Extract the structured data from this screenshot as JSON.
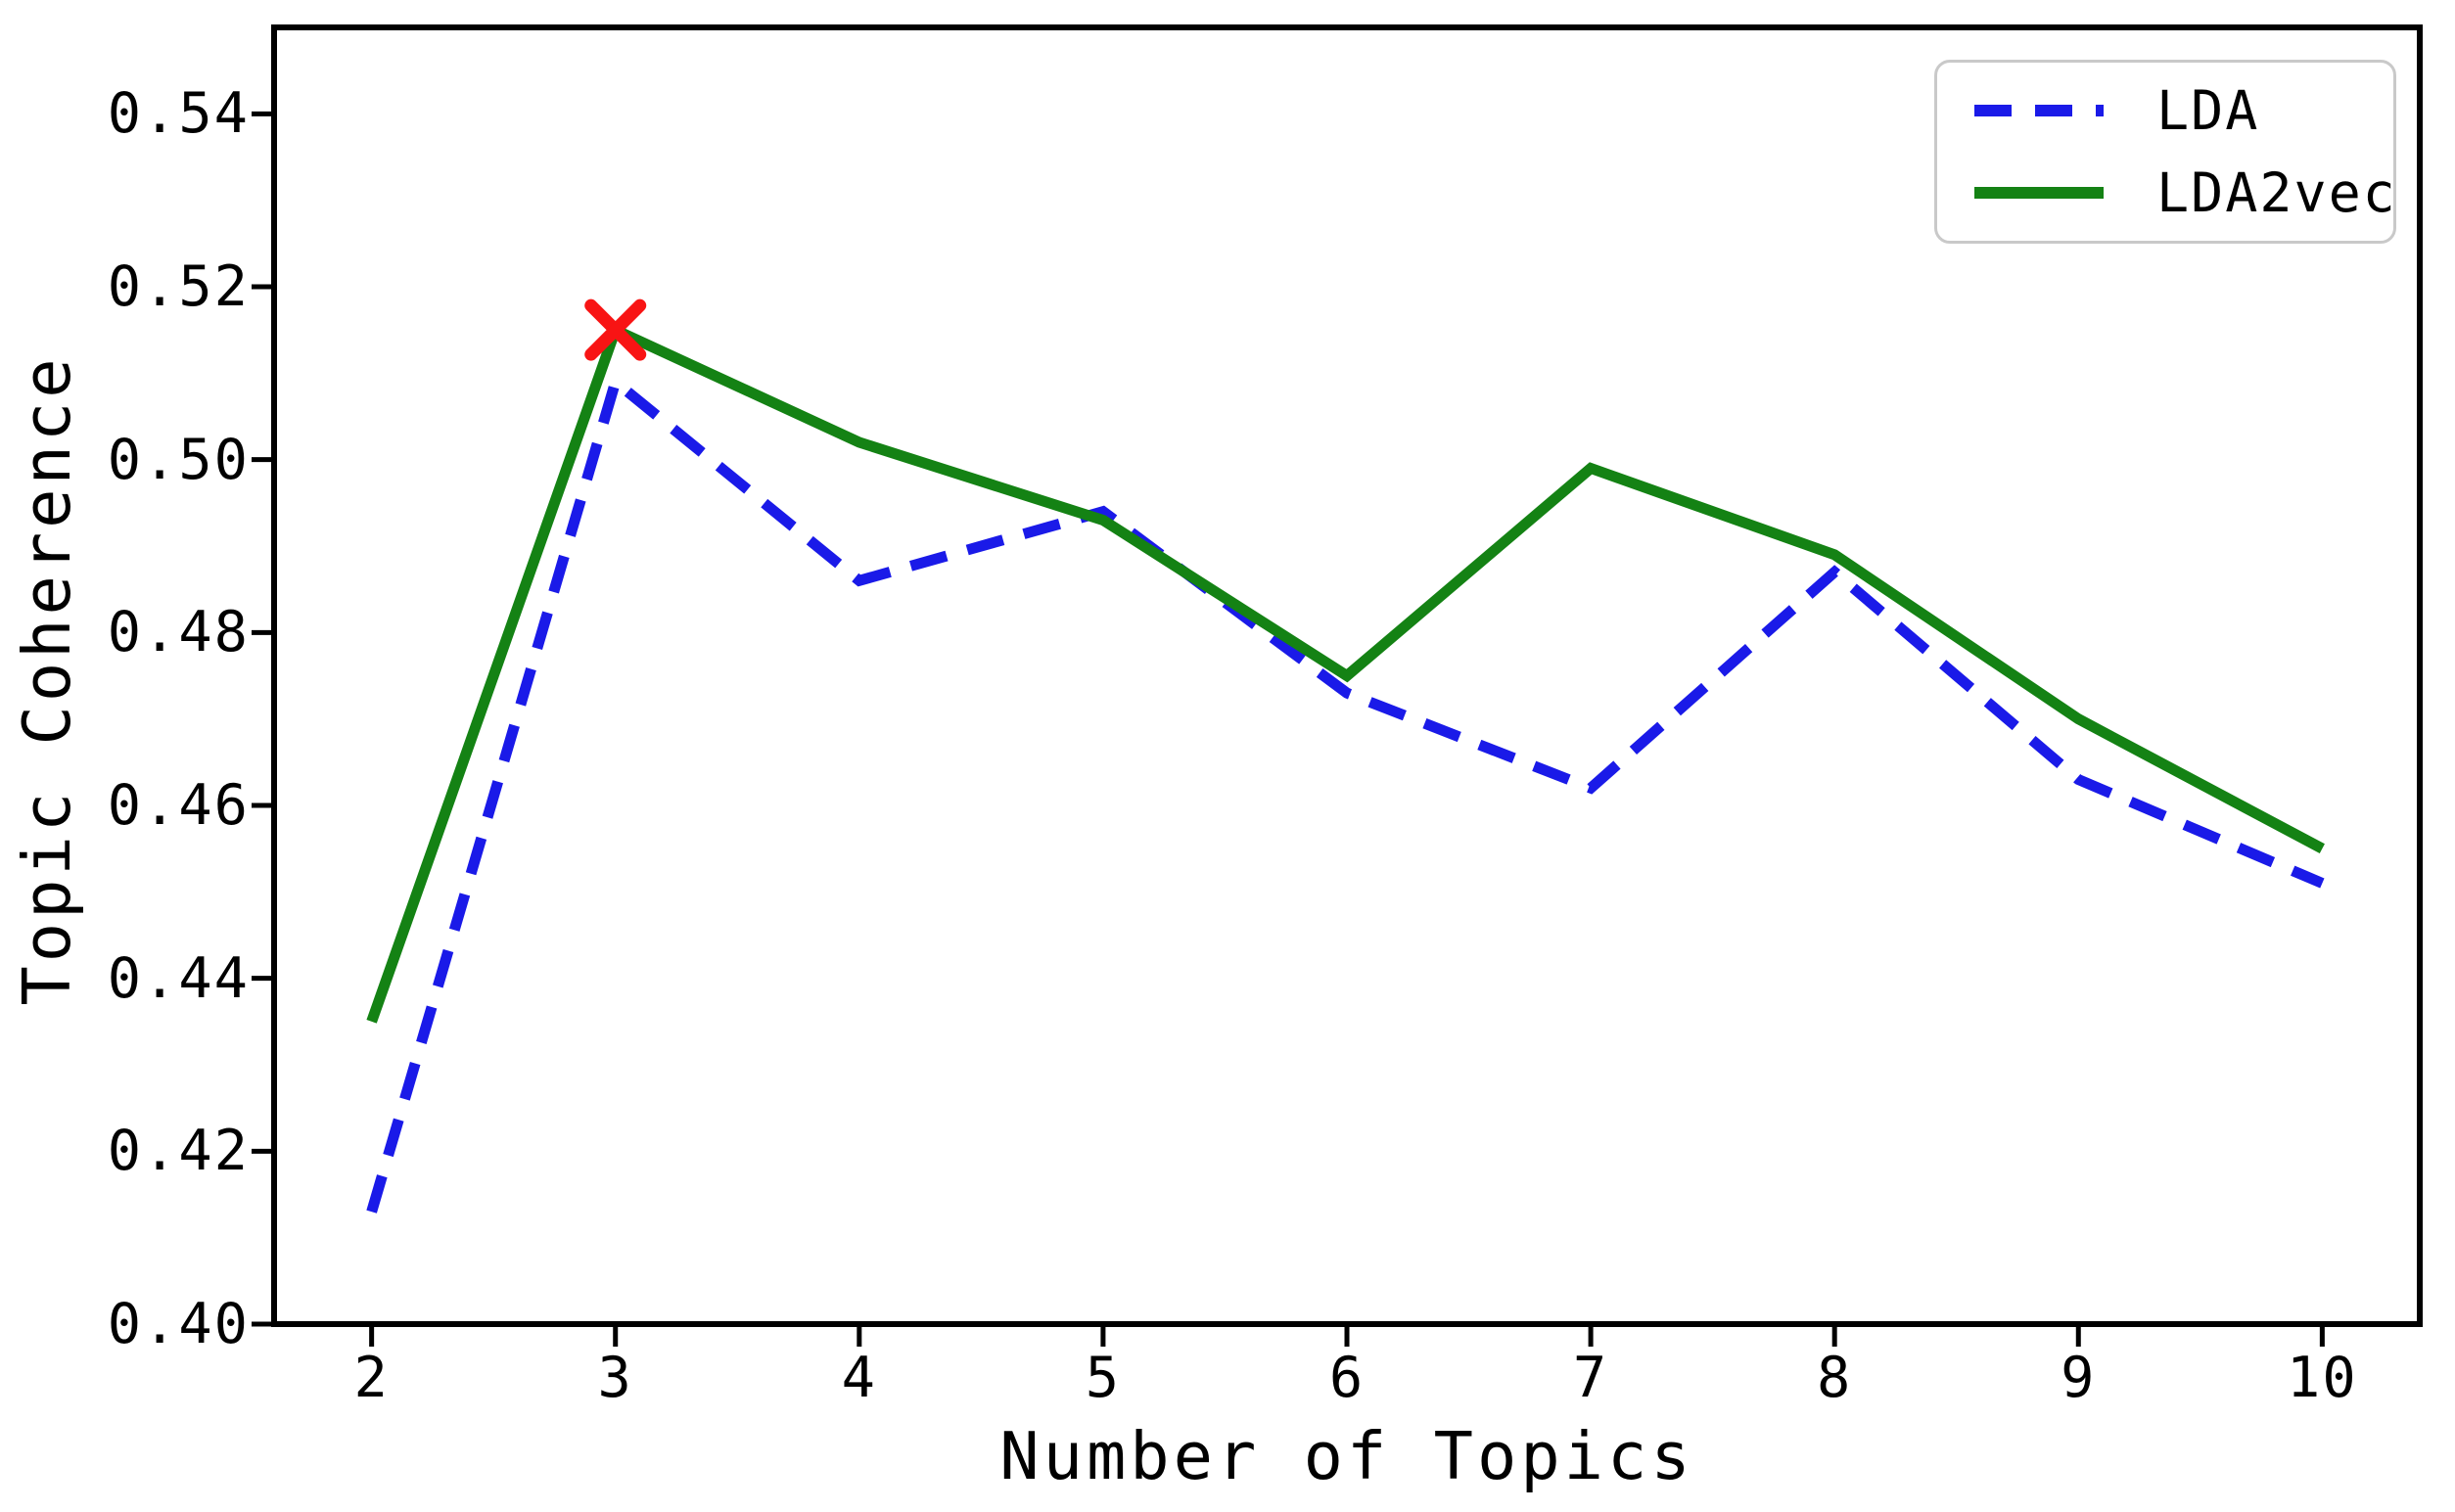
{
  "chart_data": {
    "type": "line",
    "title": "",
    "xlabel": "Number of Topics",
    "ylabel": "Topic Coherence",
    "x": [
      2,
      3,
      4,
      5,
      6,
      7,
      8,
      9,
      10
    ],
    "x_tick_labels": [
      "2",
      "3",
      "4",
      "5",
      "6",
      "7",
      "8",
      "9",
      "10"
    ],
    "y_ticks": [
      0.4,
      0.42,
      0.44,
      0.46,
      0.48,
      0.5,
      0.52,
      0.54
    ],
    "y_tick_labels": [
      "0.40",
      "0.42",
      "0.44",
      "0.46",
      "0.48",
      "0.50",
      "0.52",
      "0.54"
    ],
    "xlim": [
      1.6,
      10.4
    ],
    "ylim": [
      0.4,
      0.55
    ],
    "grid": false,
    "legend_position": "upper right",
    "series": [
      {
        "name": "LDA",
        "style": "dashed",
        "color": "#1a1ae8",
        "values": [
          0.413,
          0.509,
          0.486,
          0.494,
          0.473,
          0.462,
          0.487,
          0.463,
          0.451
        ]
      },
      {
        "name": "LDA2vec",
        "style": "solid",
        "color": "#148214",
        "values": [
          0.435,
          0.515,
          0.502,
          0.493,
          0.475,
          0.499,
          0.489,
          0.47,
          0.455
        ]
      }
    ],
    "best_point_marker": {
      "x": 3,
      "y": 0.515,
      "symbol": "x",
      "color": "#f81414"
    },
    "frame_color": "#000000"
  }
}
